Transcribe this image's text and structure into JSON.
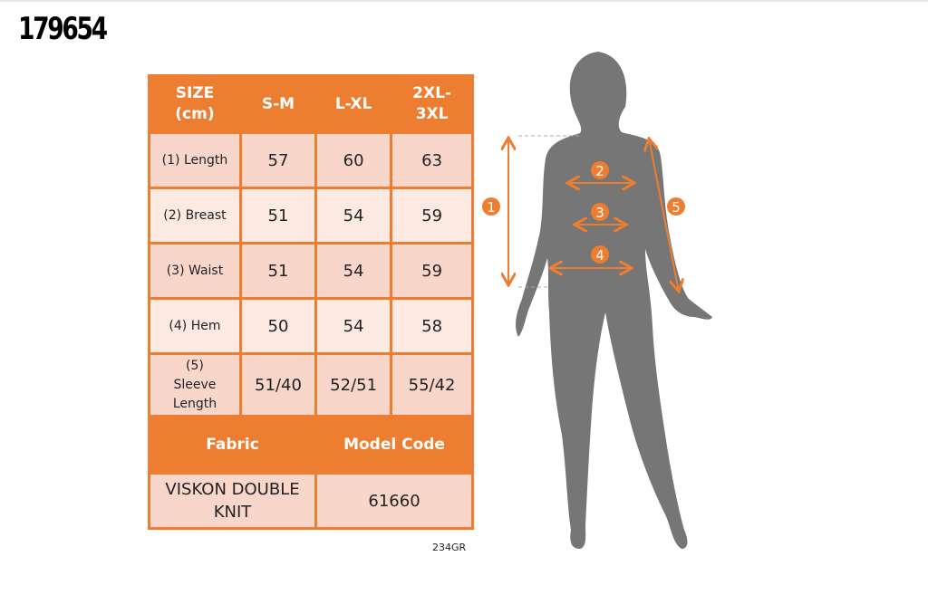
{
  "product_code": "179654",
  "table": {
    "header": [
      "SIZE (cm)",
      "S-M",
      "L-XL",
      "2XL-3XL"
    ],
    "rows": [
      {
        "label": "(1) Length",
        "values": [
          "57",
          "60",
          "63"
        ]
      },
      {
        "label": "(2) Breast",
        "values": [
          "51",
          "54",
          "59"
        ]
      },
      {
        "label": "(3) Waist",
        "values": [
          "51",
          "54",
          "59"
        ]
      },
      {
        "label": "(4) Hem",
        "values": [
          "50",
          "54",
          "58"
        ]
      },
      {
        "label": "(5) Sleeve Length",
        "values": [
          "51/40",
          "52/51",
          "55/42"
        ]
      }
    ],
    "fabric_label": "Fabric",
    "model_code_label": "Model Code",
    "fabric": "VISKON DOUBLE KNIT",
    "model_code": "61660"
  },
  "footer_code": "234GR",
  "markers": [
    "1",
    "2",
    "3",
    "4",
    "5"
  ],
  "colors": {
    "accent": "#ed7d31",
    "silhouette": "#767676",
    "row_dark": "#f8d6ca",
    "row_light": "#fce9e2"
  }
}
